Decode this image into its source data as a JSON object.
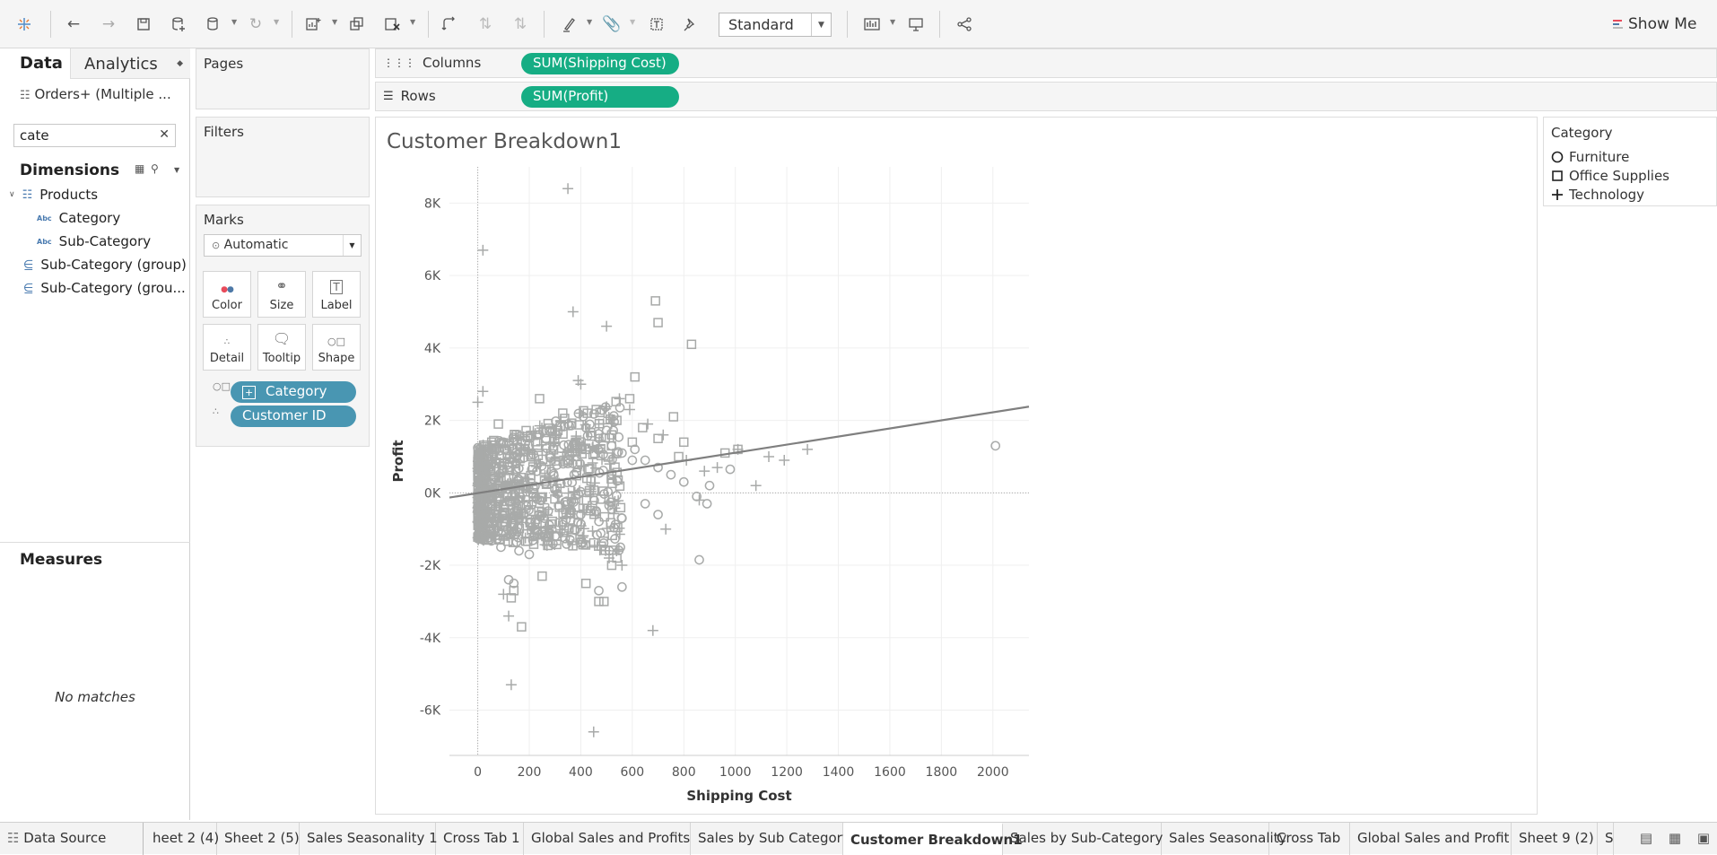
{
  "toolbar": {
    "workbook_mode": "Standard",
    "show_me_label": "Show Me",
    "show_me_colors": [
      "#e84b5b",
      "#4e79a7",
      "#bbbbbb"
    ]
  },
  "left_panel": {
    "tab_data": "Data",
    "tab_analytics": "Analytics",
    "data_source": "Orders+ (Multiple ...",
    "search_value": "cate",
    "dimensions_header": "Dimensions",
    "folder": "Products",
    "fields": [
      "Category",
      "Sub-Category",
      "Sub-Category (group)",
      "Sub-Category (grou..."
    ],
    "measures_header": "Measures",
    "no_matches": "No matches"
  },
  "cards": {
    "pages": "Pages",
    "filters": "Filters",
    "marks": "Marks",
    "marks_type": "Automatic",
    "mark_buttons": [
      "Color",
      "Size",
      "Label",
      "Detail",
      "Tooltip",
      "Shape"
    ],
    "mark_pills": [
      "Category",
      "Customer ID"
    ]
  },
  "shelves": {
    "columns_label": "Columns",
    "columns_pill": "SUM(Shipping Cost)",
    "rows_label": "Rows",
    "rows_pill": "SUM(Profit)"
  },
  "view": {
    "title": "Customer Breakdown1"
  },
  "legend": {
    "title": "Category",
    "items": [
      "Furniture",
      "Office Supplies",
      "Technology"
    ]
  },
  "sheet_tabs": {
    "data_source": "Data Source",
    "tabs": [
      "heet 2 (4)",
      "Sheet 2 (5)",
      "Sales Seasonality 1",
      "Cross Tab 1",
      "Global Sales and Profits",
      "Sales by Sub Category",
      "Customer Breakdown1",
      "Sales by Sub-Category",
      "Sales Seasonality",
      "Cross Tab",
      "Global Sales and Profit",
      "Sheet 9 (2)",
      "S"
    ],
    "active": "Customer Breakdown1"
  },
  "colors": {
    "pill_green": "#16ad84",
    "pill_blue": "#4996b2",
    "mark_gray": "#a8aaa9",
    "trend_line": "#7f7f7f"
  },
  "chart_data": {
    "type": "scatter",
    "xlabel": "Shipping Cost",
    "ylabel": "Profit",
    "xlim": [
      -110,
      2140
    ],
    "ylim": [
      -7250,
      9000
    ],
    "x_ticks": [
      0,
      200,
      400,
      600,
      800,
      1000,
      1200,
      1400,
      1600,
      1800,
      2000
    ],
    "y_ticks": [
      8000,
      6000,
      4000,
      2000,
      0,
      -2000,
      -4000,
      -6000
    ],
    "y_tick_labels": [
      "8K",
      "6K",
      "4K",
      "2K",
      "0K",
      "-2K",
      "-4K",
      "-6K"
    ],
    "grid": true,
    "trend_line": {
      "x": [
        -110,
        2140
      ],
      "y": [
        -130,
        2380
      ]
    },
    "series": [
      {
        "name": "Furniture",
        "shape": "circle",
        "points": [
          [
            2010,
            1300
          ],
          [
            980,
            650
          ],
          [
            890,
            -300
          ],
          [
            860,
            -1850
          ],
          [
            700,
            -600
          ],
          [
            650,
            -300
          ],
          [
            560,
            -2600
          ],
          [
            470,
            -2700
          ],
          [
            520,
            -450
          ],
          [
            560,
            -700
          ],
          [
            610,
            1200
          ],
          [
            650,
            900
          ],
          [
            700,
            700
          ],
          [
            750,
            500
          ],
          [
            800,
            300
          ],
          [
            850,
            -100
          ],
          [
            900,
            200
          ],
          [
            120,
            -2400
          ],
          [
            140,
            -2500
          ],
          [
            90,
            -1500
          ],
          [
            160,
            -1600
          ],
          [
            200,
            -1700
          ],
          [
            300,
            -1200
          ],
          [
            330,
            -800
          ],
          [
            400,
            -600
          ],
          [
            460,
            -500
          ],
          [
            240,
            1600
          ],
          [
            290,
            1700
          ],
          [
            350,
            1900
          ],
          [
            420,
            1800
          ],
          [
            470,
            1500
          ],
          [
            520,
            1300
          ],
          [
            560,
            1100
          ],
          [
            600,
            900
          ],
          [
            100,
            1400
          ],
          [
            60,
            1100
          ]
        ]
      },
      {
        "name": "Office Supplies",
        "shape": "square",
        "points": [
          [
            690,
            5300
          ],
          [
            700,
            4700
          ],
          [
            830,
            4100
          ],
          [
            610,
            3200
          ],
          [
            590,
            2600
          ],
          [
            760,
            2100
          ],
          [
            960,
            1100
          ],
          [
            1010,
            1200
          ],
          [
            420,
            -2500
          ],
          [
            470,
            -3000
          ],
          [
            490,
            -3000
          ],
          [
            140,
            -2700
          ],
          [
            130,
            -2900
          ],
          [
            170,
            -3700
          ],
          [
            250,
            -2300
          ],
          [
            520,
            -2000
          ],
          [
            540,
            -1800
          ],
          [
            240,
            2600
          ],
          [
            330,
            2200
          ],
          [
            460,
            2300
          ],
          [
            540,
            2000
          ],
          [
            640,
            1800
          ],
          [
            700,
            1500
          ],
          [
            780,
            1000
          ],
          [
            800,
            1400
          ],
          [
            600,
            1400
          ],
          [
            520,
            1600
          ],
          [
            420,
            1200
          ],
          [
            380,
            1400
          ],
          [
            200,
            1300
          ],
          [
            150,
            1600
          ],
          [
            80,
            1900
          ]
        ]
      },
      {
        "name": "Technology",
        "shape": "plus",
        "points": [
          [
            350,
            8400
          ],
          [
            20,
            6700
          ],
          [
            370,
            5000
          ],
          [
            500,
            4600
          ],
          [
            20,
            2800
          ],
          [
            0,
            2500
          ],
          [
            390,
            3100
          ],
          [
            400,
            3000
          ],
          [
            550,
            2600
          ],
          [
            590,
            2300
          ],
          [
            660,
            1900
          ],
          [
            720,
            1600
          ],
          [
            1010,
            1200
          ],
          [
            1130,
            1000
          ],
          [
            1190,
            900
          ],
          [
            1280,
            1200
          ],
          [
            1080,
            200
          ],
          [
            860,
            -200
          ],
          [
            680,
            -3800
          ],
          [
            450,
            -6600
          ],
          [
            120,
            -3400
          ],
          [
            130,
            -5300
          ],
          [
            100,
            -2800
          ],
          [
            510,
            -1800
          ],
          [
            560,
            -2000
          ],
          [
            730,
            -1000
          ],
          [
            810,
            900
          ],
          [
            880,
            600
          ],
          [
            930,
            700
          ],
          [
            300,
            1600
          ],
          [
            250,
            1200
          ],
          [
            170,
            1200
          ],
          [
            470,
            1900
          ],
          [
            430,
            1700
          ]
        ]
      }
    ],
    "cluster_note": "dense overlapping marks near Shipping Cost 0-600, Profit -2000 to 2000"
  }
}
